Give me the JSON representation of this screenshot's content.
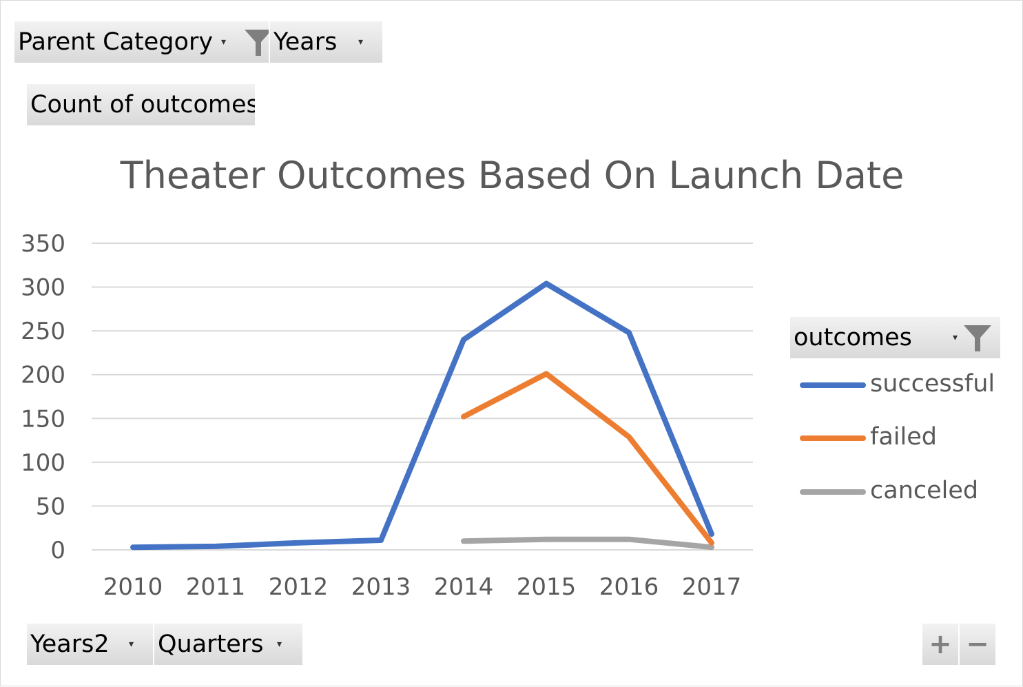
{
  "filters": {
    "parent_category": "Parent Category",
    "years": "Years",
    "values_field": "Count of outcomes",
    "years2": "Years2",
    "quarters": "Quarters",
    "legend_field": "outcomes"
  },
  "icons": {
    "dropdown": "dropdown-arrow-icon",
    "filter": "filter-funnel-icon",
    "expand": "plus-icon",
    "collapse": "minus-icon"
  },
  "zoom": {
    "plus": "+",
    "minus": "−"
  },
  "colors": {
    "successful": "#4472c4",
    "failed": "#ed7d31",
    "canceled": "#a5a5a5",
    "gridline": "#d9d9d9",
    "text": "#595959"
  },
  "chart_data": {
    "type": "line",
    "title": "Theater Outcomes Based On Launch Date",
    "categories": [
      "2010",
      "2011",
      "2012",
      "2013",
      "2014",
      "2015",
      "2016",
      "2017"
    ],
    "ylim": [
      0,
      350
    ],
    "yticks": [
      0,
      50,
      100,
      150,
      200,
      250,
      300,
      350
    ],
    "grid": true,
    "legend_position": "right",
    "series": [
      {
        "name": "successful",
        "values": [
          3,
          4,
          8,
          11,
          240,
          304,
          248,
          18
        ]
      },
      {
        "name": "failed",
        "values": [
          null,
          null,
          null,
          null,
          152,
          201,
          129,
          8
        ]
      },
      {
        "name": "canceled",
        "values": [
          null,
          null,
          null,
          null,
          10,
          12,
          12,
          3
        ]
      }
    ]
  }
}
